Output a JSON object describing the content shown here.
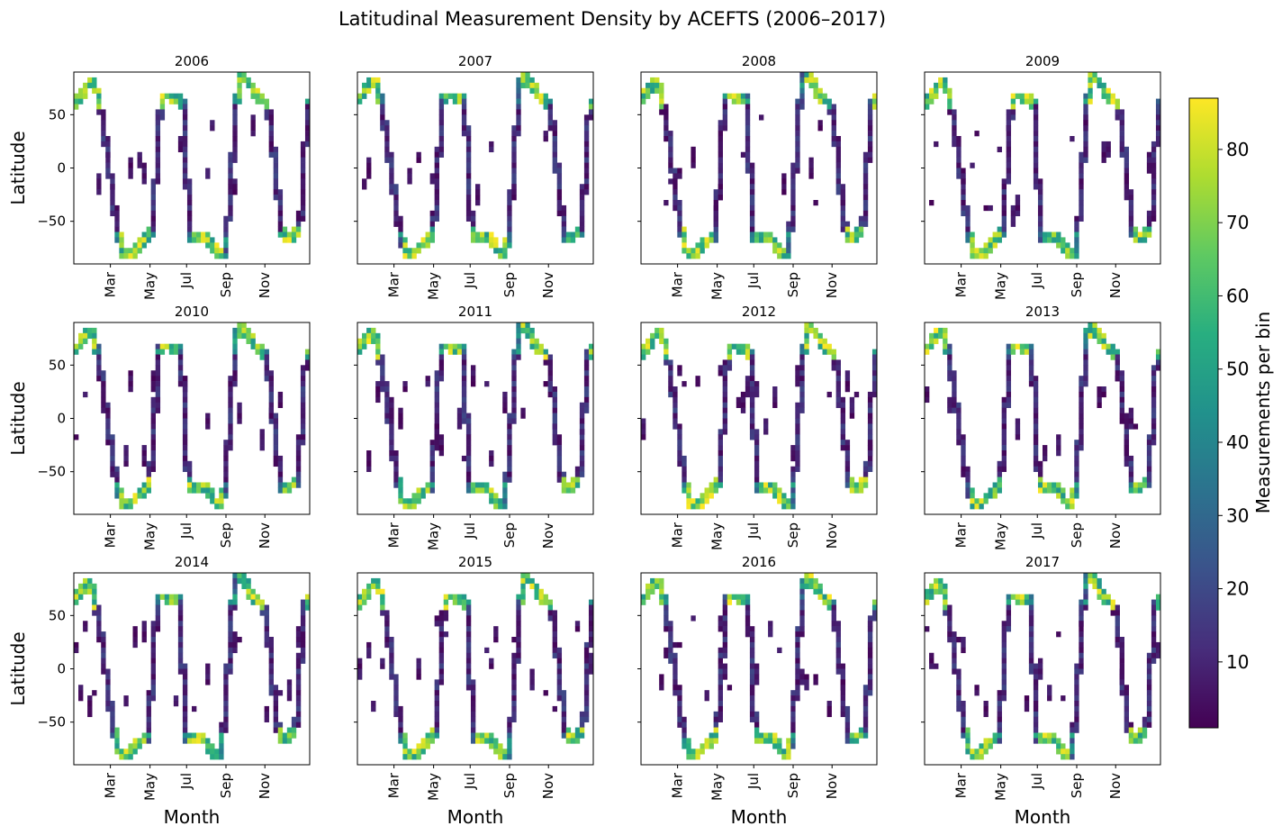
{
  "figure": {
    "title": "Latitudinal Measurement Density by ACEFTS (2006–2017)"
  },
  "chart_data": {
    "type": "heatmap",
    "grid": false,
    "layout": "3 rows x 4 columns of panels sharing the y axis",
    "x_axis": {
      "label": "Month",
      "ticks": [
        "Mar",
        "May",
        "Jul",
        "Sep",
        "Nov"
      ],
      "tick_rotation_deg": 90
    },
    "y_axis": {
      "label": "Latitude",
      "range": [
        -90,
        90
      ],
      "ticks": [
        "50",
        "0",
        "−50"
      ]
    },
    "colormap": "viridis",
    "colorbar": {
      "label": "Measurements per bin",
      "range": [
        1,
        87
      ],
      "ticks": [
        "10",
        "20",
        "30",
        "40",
        "50",
        "60",
        "70",
        "80"
      ],
      "position": "right"
    },
    "panels": [
      {
        "title": "2006"
      },
      {
        "title": "2007"
      },
      {
        "title": "2008"
      },
      {
        "title": "2009"
      },
      {
        "title": "2010"
      },
      {
        "title": "2011"
      },
      {
        "title": "2012"
      },
      {
        "title": "2013"
      },
      {
        "title": "2014"
      },
      {
        "title": "2015"
      },
      {
        "title": "2016"
      },
      {
        "title": "2017"
      }
    ],
    "pattern": "occultation latitude track: two sinusoidal sweeps per year between about -82 and +85 degrees; highest counts (60-87) at the turning latitudes near ±65-85, low counts (1-20) along the meridional crossings"
  }
}
